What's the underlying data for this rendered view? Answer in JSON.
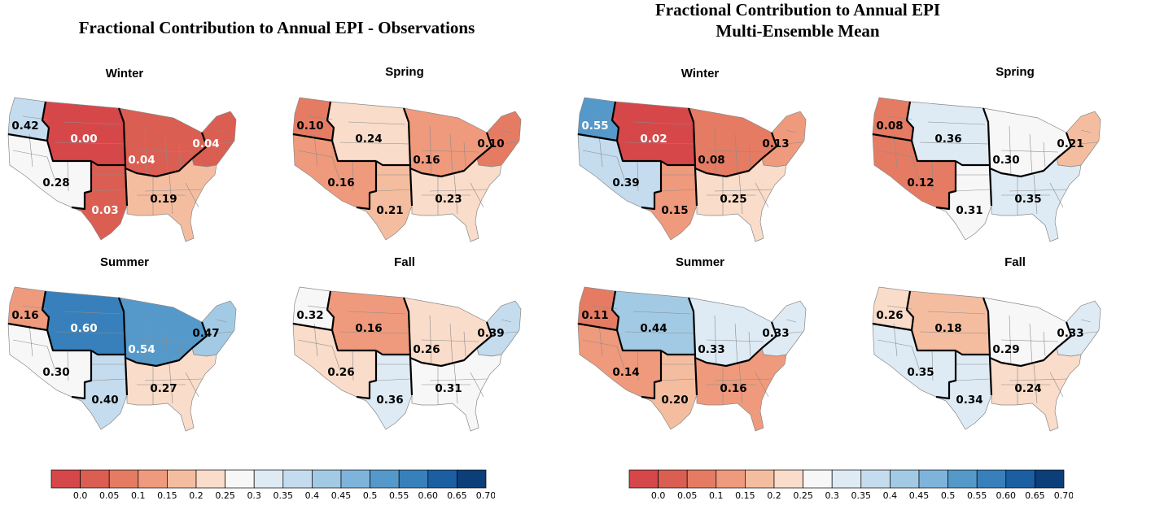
{
  "left_panel": {
    "title": "Fractional Contribution to Annual EPI - Observations",
    "maps": [
      {
        "season": "Winter",
        "values": {
          "nw": "0.42",
          "nc": "0.00",
          "mw": "0.04",
          "ne": "0.04",
          "sw": "0.28",
          "sc": "0.03",
          "se": "0.19"
        }
      },
      {
        "season": "Spring",
        "values": {
          "nw": "0.10",
          "nc": "0.24",
          "mw": "0.16",
          "ne": "0.10",
          "sw": "0.16",
          "sc": "0.21",
          "se": "0.23"
        }
      },
      {
        "season": "Summer",
        "values": {
          "nw": "0.16",
          "nc": "0.60",
          "mw": "0.54",
          "ne": "0.47",
          "sw": "0.30",
          "sc": "0.40",
          "se": "0.27"
        }
      },
      {
        "season": "Fall",
        "values": {
          "nw": "0.32",
          "nc": "0.16",
          "mw": "0.26",
          "ne": "0.39",
          "sw": "0.26",
          "sc": "0.36",
          "se": "0.31"
        }
      }
    ]
  },
  "right_panel": {
    "title_line1": "Fractional Contribution to Annual EPI",
    "title_line2": "Multi-Ensemble Mean",
    "maps": [
      {
        "season": "Winter",
        "values": {
          "nw": "0.55",
          "nc": "0.02",
          "mw": "0.08",
          "ne": "0.13",
          "sw": "0.39",
          "sc": "0.15",
          "se": "0.25"
        }
      },
      {
        "season": "Spring",
        "values": {
          "nw": "0.08",
          "nc": "0.36",
          "mw": "0.30",
          "ne": "0.21",
          "sw": "0.12",
          "sc": "0.31",
          "se": "0.35"
        }
      },
      {
        "season": "Summer",
        "values": {
          "nw": "0.11",
          "nc": "0.44",
          "mw": "0.33",
          "ne": "0.33",
          "sw": "0.14",
          "sc": "0.20",
          "se": "0.16"
        }
      },
      {
        "season": "Fall",
        "values": {
          "nw": "0.26",
          "nc": "0.18",
          "mw": "0.29",
          "ne": "0.33",
          "sw": "0.35",
          "sc": "0.34",
          "se": "0.24"
        }
      }
    ]
  },
  "colorbar": {
    "tick_labels": [
      "0.0",
      "0.05",
      "0.1",
      "0.15",
      "0.2",
      "0.25",
      "0.3",
      "0.35",
      "0.4",
      "0.45",
      "0.5",
      "0.55",
      "0.60",
      "0.65",
      "0.70"
    ],
    "colors": [
      "#d6474a",
      "#db5e52",
      "#e57b63",
      "#ef9a7c",
      "#f5bd9f",
      "#f9dcc9",
      "#f7f7f7",
      "#deebf5",
      "#c4dcee",
      "#a2cae4",
      "#7eb4db",
      "#5499c9",
      "#3780bb",
      "#1b5fa2",
      "#0c3e79"
    ]
  }
}
